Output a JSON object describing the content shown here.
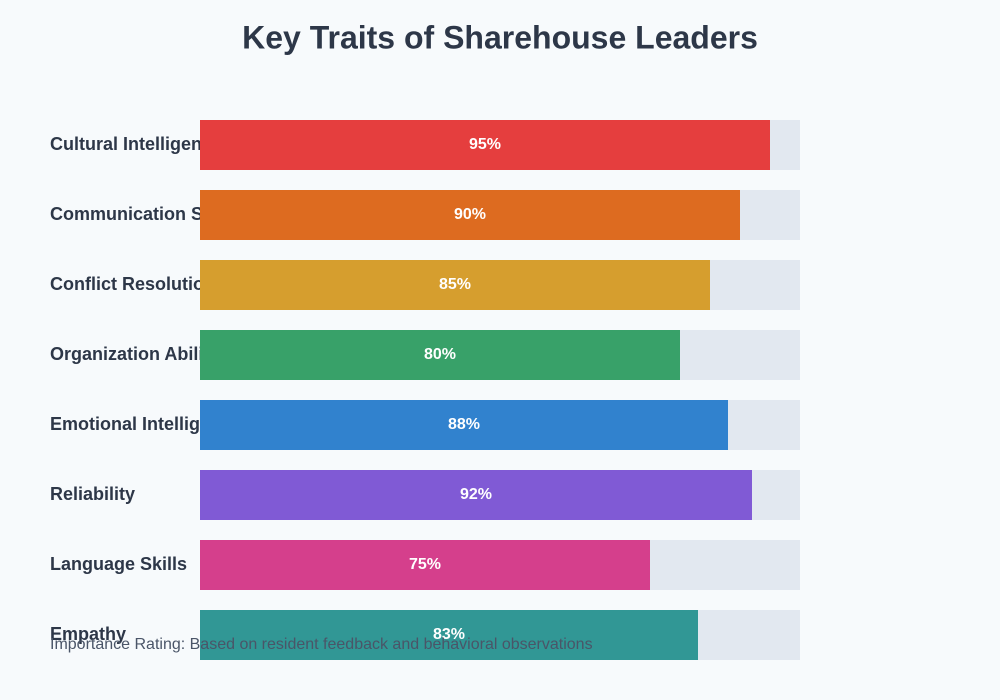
{
  "chart_data": {
    "type": "hbar",
    "title": "Key Traits of Sharehouse Leaders",
    "categories": [
      "Cultural Intelligence",
      "Communication Skills",
      "Conflict Resolution",
      "Organization Ability",
      "Emotional Intelligence",
      "Reliability",
      "Language Skills",
      "Empathy"
    ],
    "values": [
      95,
      90,
      85,
      80,
      88,
      92,
      75,
      83
    ],
    "value_labels": [
      "95%",
      "90%",
      "85%",
      "80%",
      "88%",
      "92%",
      "75%",
      "83%"
    ],
    "colors": [
      "#e53e3e",
      "#dd6b20",
      "#d69e2e",
      "#38a169",
      "#3182ce",
      "#805ad5",
      "#d53f8c",
      "#319795"
    ],
    "xlim": [
      0,
      100
    ],
    "note": "Importance Rating: Based on resident feedback and behavioral observations"
  }
}
